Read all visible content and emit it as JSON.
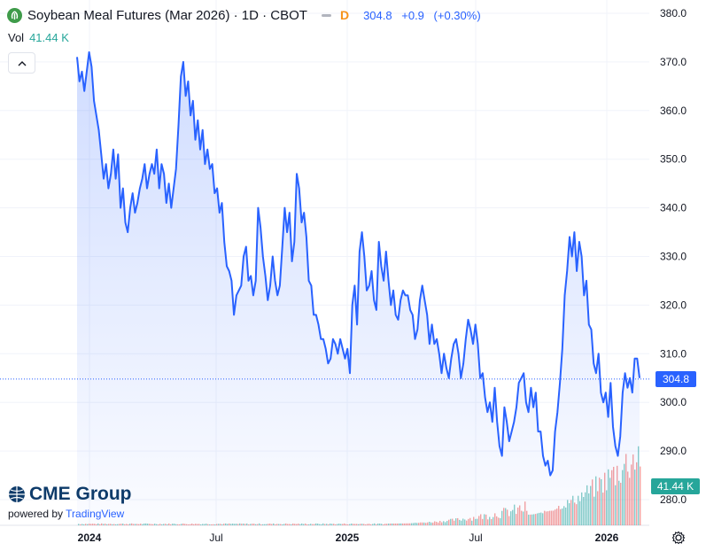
{
  "header": {
    "title": "Soybean Meal Futures (Mar 2026) · 1D · CBOT",
    "interval_flag": "D",
    "last": "304.8",
    "change": "+0.9",
    "change_pct": "(+0.30%)",
    "accent_color": "#2962ff"
  },
  "volume": {
    "label": "Vol",
    "value": "41.44 K",
    "color_up": "#26a69a",
    "color_down": "#ef5350"
  },
  "price_tag": "304.8",
  "volume_tag": "41.44 K",
  "brand": {
    "name": "CME Group",
    "powered_prefix": "powered by",
    "powered_name": "TradingView"
  },
  "icons": {
    "collapse": "chevron-up-icon",
    "settings": "gear-icon",
    "logo": "soybean-logo-icon"
  },
  "chart_data": {
    "type": "area",
    "title": "Soybean Meal Futures (Mar 2026) · 1D · CBOT",
    "xlabel": "",
    "ylabel": "",
    "x_ticks": [
      "2024",
      "Jul",
      "2025",
      "Jul",
      "2026"
    ],
    "y_ticks": [
      280.0,
      290.0,
      300.0,
      310.0,
      320.0,
      330.0,
      340.0,
      350.0,
      360.0,
      370.0,
      380.0
    ],
    "ylim": [
      276,
      382
    ],
    "grid": true,
    "legend": "none",
    "last_value": 304.8,
    "series": [
      {
        "values": [
          371,
          366,
          368,
          364,
          368,
          372,
          369,
          362,
          359,
          356,
          351,
          346,
          349,
          344,
          347,
          352,
          346,
          351,
          340,
          344,
          337,
          335,
          340,
          343,
          339,
          341,
          344,
          346,
          349,
          344,
          347,
          349,
          347,
          352,
          344,
          349,
          347,
          341,
          345,
          340,
          344,
          348,
          357,
          367,
          370,
          363,
          366,
          359,
          362,
          354,
          358,
          352,
          356,
          349,
          352,
          348,
          349,
          343,
          344,
          339,
          341,
          333,
          328,
          327,
          325,
          318,
          322,
          323,
          324,
          330,
          332,
          325,
          326,
          322,
          325,
          340,
          336,
          330,
          326,
          321,
          324,
          330,
          325,
          322,
          324,
          332,
          340,
          335,
          339,
          329,
          333,
          347,
          344,
          337,
          339,
          334,
          325,
          324,
          318,
          318,
          316,
          313,
          313,
          311,
          308,
          309,
          313,
          312,
          310,
          313,
          311,
          309,
          311,
          306,
          320,
          324,
          316,
          331,
          335,
          330,
          323,
          324,
          327,
          321,
          319,
          333,
          328,
          325,
          331,
          325,
          320,
          323,
          318,
          317,
          321,
          323,
          322,
          322,
          319,
          318,
          313,
          315,
          321,
          324,
          321,
          318,
          312,
          316,
          312,
          313,
          310,
          306,
          310,
          307,
          305,
          309,
          312,
          313,
          310,
          305,
          308,
          313,
          317,
          315,
          312,
          316,
          312,
          305,
          306,
          301,
          298,
          300,
          296,
          303,
          296,
          291,
          289,
          299,
          296,
          292,
          294,
          296,
          299,
          304,
          305,
          306,
          300,
          298,
          303,
          299,
          302,
          294,
          294,
          289,
          287,
          288,
          285,
          286,
          294,
          298,
          304,
          311,
          322,
          327,
          334,
          330,
          335,
          327,
          333,
          330,
          322,
          325,
          316,
          315,
          308,
          306,
          310,
          302,
          300,
          302,
          297,
          304,
          295,
          291,
          289,
          293,
          302,
          306,
          303,
          305,
          302,
          309,
          309,
          305
        ]
      }
    ],
    "volume_bars": [
      {
        "dates_span": "2024 – mid 2025",
        "level": "low"
      },
      {
        "dates_span": "late 2025 – 2026",
        "level": "rising",
        "last": "41.44 K"
      }
    ]
  }
}
